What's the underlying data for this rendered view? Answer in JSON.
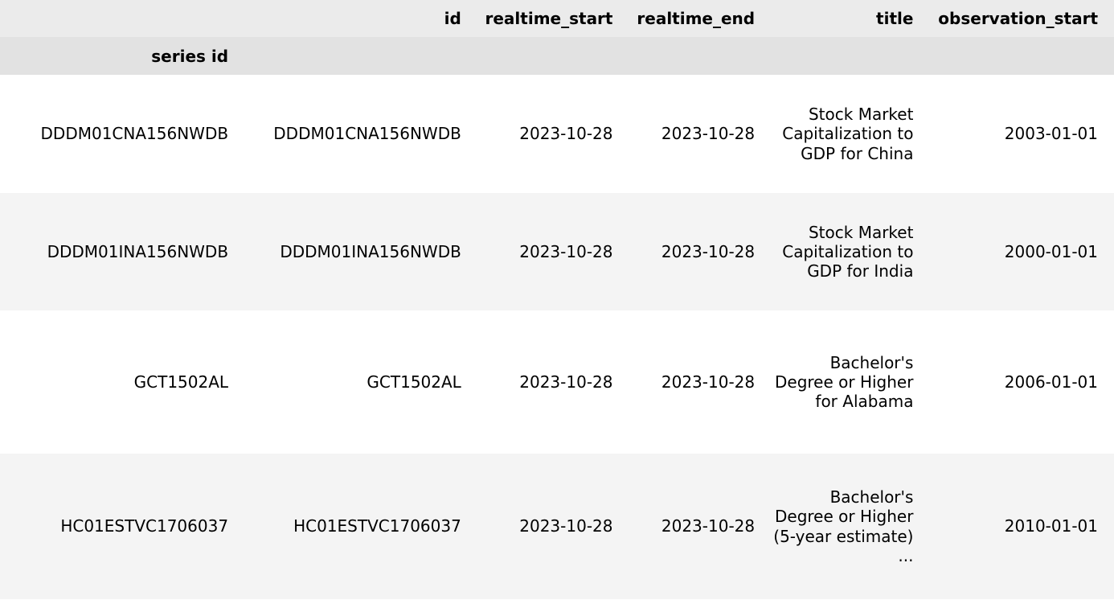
{
  "table": {
    "columns": {
      "id": "id",
      "realtime_start": "realtime_start",
      "realtime_end": "realtime_end",
      "title": "title",
      "observation_start": "observation_start"
    },
    "index_name": "series id",
    "rows": [
      {
        "index": "DDDM01CNA156NWDB",
        "id": "DDDM01CNA156NWDB",
        "realtime_start": "2023-10-28",
        "realtime_end": "2023-10-28",
        "title": "Stock Market Capitalization to GDP for China",
        "observation_start": "2003-01-01"
      },
      {
        "index": "DDDM01INA156NWDB",
        "id": "DDDM01INA156NWDB",
        "realtime_start": "2023-10-28",
        "realtime_end": "2023-10-28",
        "title": "Stock Market Capitalization to GDP for India",
        "observation_start": "2000-01-01"
      },
      {
        "index": "GCT1502AL",
        "id": "GCT1502AL",
        "realtime_start": "2023-10-28",
        "realtime_end": "2023-10-28",
        "title": "Bachelor's Degree or Higher for Alabama",
        "observation_start": "2006-01-01"
      },
      {
        "index": "HC01ESTVC1706037",
        "id": "HC01ESTVC1706037",
        "realtime_start": "2023-10-28",
        "realtime_end": "2023-10-28",
        "title": "Bachelor's Degree or Higher (5-year estimate) ...",
        "observation_start": "2010-01-01"
      }
    ]
  },
  "colors": {
    "header_bg": "#ebebeb",
    "index_header_bg": "#e2e2e2",
    "stripe_bg": "#f4f4f4",
    "text": "#000000"
  }
}
